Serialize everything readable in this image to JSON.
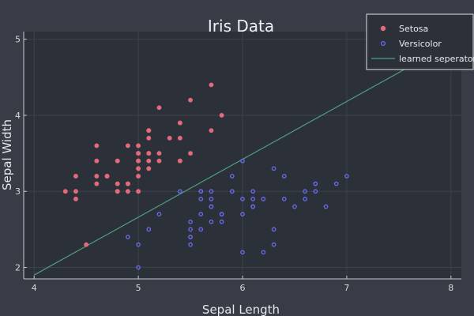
{
  "chart_data": {
    "type": "scatter",
    "title": "Iris Data",
    "xlabel": "Sepal Length",
    "ylabel": "Sepal Width",
    "xlim": [
      3.9,
      8.1
    ],
    "ylim": [
      1.85,
      5.1
    ],
    "xticks": [
      "4",
      "5",
      "6",
      "7",
      "8"
    ],
    "yticks": [
      "2",
      "3",
      "4",
      "5"
    ],
    "grid": true,
    "legend_position": "top-right",
    "series": [
      {
        "name": "Setosa",
        "kind": "scatter",
        "color": "#e26a7a",
        "points": [
          [
            5.1,
            3.5
          ],
          [
            4.9,
            3.0
          ],
          [
            4.7,
            3.2
          ],
          [
            4.6,
            3.1
          ],
          [
            5.0,
            3.6
          ],
          [
            5.4,
            3.9
          ],
          [
            4.6,
            3.4
          ],
          [
            5.0,
            3.4
          ],
          [
            4.4,
            2.9
          ],
          [
            4.9,
            3.1
          ],
          [
            5.4,
            3.7
          ],
          [
            4.8,
            3.4
          ],
          [
            4.8,
            3.0
          ],
          [
            4.3,
            3.0
          ],
          [
            5.8,
            4.0
          ],
          [
            5.7,
            4.4
          ],
          [
            5.4,
            3.9
          ],
          [
            5.1,
            3.5
          ],
          [
            5.7,
            3.8
          ],
          [
            5.1,
            3.8
          ],
          [
            5.4,
            3.4
          ],
          [
            5.1,
            3.7
          ],
          [
            4.6,
            3.6
          ],
          [
            5.1,
            3.3
          ],
          [
            4.8,
            3.4
          ],
          [
            5.0,
            3.0
          ],
          [
            5.0,
            3.4
          ],
          [
            5.2,
            3.5
          ],
          [
            5.2,
            3.4
          ],
          [
            4.7,
            3.2
          ],
          [
            4.8,
            3.1
          ],
          [
            5.4,
            3.4
          ],
          [
            5.2,
            4.1
          ],
          [
            5.5,
            4.2
          ],
          [
            4.9,
            3.1
          ],
          [
            5.0,
            3.2
          ],
          [
            5.5,
            3.5
          ],
          [
            4.9,
            3.6
          ],
          [
            4.4,
            3.0
          ],
          [
            5.1,
            3.4
          ],
          [
            5.0,
            3.5
          ],
          [
            4.5,
            2.3
          ],
          [
            4.4,
            3.2
          ],
          [
            5.0,
            3.5
          ],
          [
            5.1,
            3.8
          ],
          [
            4.8,
            3.0
          ],
          [
            5.1,
            3.8
          ],
          [
            4.6,
            3.2
          ],
          [
            5.3,
            3.7
          ],
          [
            5.0,
            3.3
          ]
        ]
      },
      {
        "name": "Versicolor",
        "kind": "scatter",
        "color": "#6a6cf0",
        "points": [
          [
            7.0,
            3.2
          ],
          [
            6.4,
            3.2
          ],
          [
            6.9,
            3.1
          ],
          [
            5.5,
            2.3
          ],
          [
            6.5,
            2.8
          ],
          [
            5.7,
            2.8
          ],
          [
            6.3,
            3.3
          ],
          [
            4.9,
            2.4
          ],
          [
            6.6,
            2.9
          ],
          [
            5.2,
            2.7
          ],
          [
            5.0,
            2.0
          ],
          [
            5.9,
            3.0
          ],
          [
            6.0,
            2.2
          ],
          [
            6.1,
            2.9
          ],
          [
            5.6,
            2.9
          ],
          [
            6.7,
            3.1
          ],
          [
            5.6,
            3.0
          ],
          [
            5.8,
            2.7
          ],
          [
            6.2,
            2.2
          ],
          [
            5.6,
            2.5
          ],
          [
            5.9,
            3.2
          ],
          [
            6.1,
            2.8
          ],
          [
            6.3,
            2.5
          ],
          [
            6.1,
            2.8
          ],
          [
            6.4,
            2.9
          ],
          [
            6.6,
            3.0
          ],
          [
            6.8,
            2.8
          ],
          [
            6.7,
            3.0
          ],
          [
            6.0,
            2.9
          ],
          [
            5.7,
            2.6
          ],
          [
            5.5,
            2.4
          ],
          [
            5.5,
            2.4
          ],
          [
            5.8,
            2.7
          ],
          [
            6.0,
            2.7
          ],
          [
            5.4,
            3.0
          ],
          [
            6.0,
            3.4
          ],
          [
            6.7,
            3.1
          ],
          [
            6.3,
            2.3
          ],
          [
            5.6,
            3.0
          ],
          [
            5.5,
            2.5
          ],
          [
            5.5,
            2.6
          ],
          [
            6.1,
            3.0
          ],
          [
            5.8,
            2.6
          ],
          [
            5.0,
            2.3
          ],
          [
            5.6,
            2.7
          ],
          [
            5.7,
            3.0
          ],
          [
            5.7,
            2.9
          ],
          [
            6.2,
            2.9
          ],
          [
            5.1,
            2.5
          ],
          [
            5.7,
            2.8
          ]
        ]
      },
      {
        "name": "learned seperator",
        "kind": "line",
        "color": "#4f9e80",
        "points": [
          [
            4.0,
            1.9
          ],
          [
            7.55,
            4.6
          ]
        ]
      }
    ]
  }
}
